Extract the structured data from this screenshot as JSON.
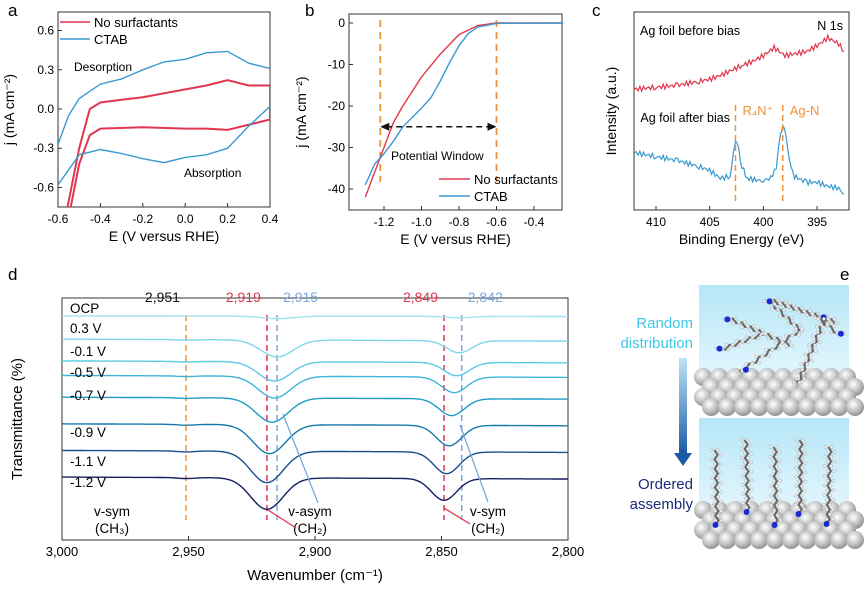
{
  "colors": {
    "red": "#e0364e",
    "blue": "#3a9ad0",
    "orange": "#f0923a",
    "random": "#3cc8e6",
    "ordered": "#1b2a7a"
  },
  "chart_data": [
    {
      "panel": "a",
      "type": "line",
      "xlabel": "E (V versus RHE)",
      "ylabel": "j (mA cm⁻²)",
      "xlim": [
        -0.6,
        0.4
      ],
      "ylim": [
        -0.75,
        0.74
      ],
      "xticks": [
        "-0.6",
        "-0.4",
        "-0.2",
        "0.0",
        "0.2",
        "0.4"
      ],
      "xtick_values": [
        -0.6,
        -0.4,
        -0.2,
        0.0,
        0.2,
        0.4
      ],
      "yticks": [
        "0.6",
        "0.3",
        "0.0",
        "-0.3",
        "-0.6"
      ],
      "ytick_values": [
        0.6,
        0.3,
        0.0,
        -0.3,
        -0.6
      ],
      "legend": "top-left",
      "annotations": [
        "Desorption",
        "Absorption"
      ],
      "series": [
        {
          "name": "No surfactants",
          "color": "#e0364e",
          "points": [
            [
              -0.555,
              -0.75
            ],
            [
              -0.5,
              -0.3
            ],
            [
              -0.45,
              0.0
            ],
            [
              -0.4,
              0.05
            ],
            [
              -0.3,
              0.07
            ],
            [
              -0.2,
              0.09
            ],
            [
              -0.1,
              0.12
            ],
            [
              0,
              0.15
            ],
            [
              0.1,
              0.18
            ],
            [
              0.2,
              0.22
            ],
            [
              0.3,
              0.18
            ],
            [
              0.4,
              0.18
            ],
            [
              0.4,
              -0.08
            ],
            [
              0.3,
              -0.12
            ],
            [
              0.2,
              -0.16
            ],
            [
              0.1,
              -0.15
            ],
            [
              0,
              -0.15
            ],
            [
              -0.2,
              -0.14
            ],
            [
              -0.4,
              -0.15
            ],
            [
              -0.45,
              -0.2
            ],
            [
              -0.5,
              -0.42
            ],
            [
              -0.54,
              -0.75
            ]
          ]
        },
        {
          "name": "CTAB",
          "color": "#3a9ad0",
          "points": [
            [
              -0.6,
              -0.27
            ],
            [
              -0.55,
              -0.05
            ],
            [
              -0.5,
              0.08
            ],
            [
              -0.4,
              0.19
            ],
            [
              -0.3,
              0.23
            ],
            [
              -0.2,
              0.3
            ],
            [
              -0.1,
              0.36
            ],
            [
              0,
              0.38
            ],
            [
              0.1,
              0.43
            ],
            [
              0.2,
              0.44
            ],
            [
              0.3,
              0.35
            ],
            [
              0.4,
              0.31
            ],
            [
              0.4,
              0.02
            ],
            [
              0.3,
              -0.13
            ],
            [
              0.2,
              -0.3
            ],
            [
              0.1,
              -0.35
            ],
            [
              0,
              -0.37
            ],
            [
              -0.1,
              -0.41
            ],
            [
              -0.2,
              -0.38
            ],
            [
              -0.3,
              -0.34
            ],
            [
              -0.4,
              -0.31
            ],
            [
              -0.5,
              -0.35
            ],
            [
              -0.6,
              -0.58
            ]
          ]
        }
      ]
    },
    {
      "panel": "b",
      "type": "line",
      "xlabel": "E (V versus RHE)",
      "ylabel": "j (mA cm⁻²)",
      "xlim": [
        -1.39,
        -0.245
      ],
      "ylim": [
        -45,
        2
      ],
      "xticks": [
        "-1.2",
        "-1.0",
        "-0.8",
        "-0.6",
        "-0.4"
      ],
      "xtick_values": [
        -1.2,
        -1.0,
        -0.8,
        -0.6,
        -0.4
      ],
      "yticks": [
        "0",
        "-10",
        "-20",
        "-30",
        "-40"
      ],
      "ytick_values": [
        0,
        -10,
        -20,
        -30,
        -40
      ],
      "legend": "bottom-right",
      "vlines": [
        -1.22,
        -0.6
      ],
      "annotation": {
        "text": "Potential Window",
        "from": -1.22,
        "to": -0.6,
        "y": -25
      },
      "series": [
        {
          "name": "No surfactants",
          "color": "#e0364e",
          "points": [
            [
              -1.3,
              -42
            ],
            [
              -1.25,
              -36
            ],
            [
              -1.2,
              -30
            ],
            [
              -1.15,
              -24
            ],
            [
              -1.1,
              -20
            ],
            [
              -1.0,
              -13
            ],
            [
              -0.9,
              -7.5
            ],
            [
              -0.8,
              -2.8
            ],
            [
              -0.7,
              -0.6
            ],
            [
              -0.6,
              0
            ],
            [
              -0.245,
              0
            ]
          ]
        },
        {
          "name": "CTAB",
          "color": "#3a9ad0",
          "points": [
            [
              -1.3,
              -39
            ],
            [
              -1.25,
              -34
            ],
            [
              -1.2,
              -31.5
            ],
            [
              -1.15,
              -28.5
            ],
            [
              -1.1,
              -25
            ],
            [
              -1.0,
              -20.5
            ],
            [
              -0.95,
              -18
            ],
            [
              -0.9,
              -14
            ],
            [
              -0.85,
              -9.5
            ],
            [
              -0.8,
              -5.5
            ],
            [
              -0.75,
              -2.5
            ],
            [
              -0.7,
              -1
            ],
            [
              -0.6,
              -0.1
            ],
            [
              -0.245,
              0
            ]
          ]
        }
      ]
    },
    {
      "panel": "c",
      "type": "line",
      "xlabel": "Binding Energy (eV)",
      "ylabel": "Intensity (a.u.)",
      "xlim": [
        412,
        392.3
      ],
      "ylim": [
        0,
        100
      ],
      "xticks": [
        "410",
        "405",
        "400",
        "395"
      ],
      "xtick_values": [
        410,
        405,
        400,
        395
      ],
      "title_corner": "N 1s",
      "vlines": [
        {
          "x": 402.6,
          "label": "R₄N⁺"
        },
        {
          "x": 398.2,
          "label": "Ag-N"
        }
      ],
      "series": [
        {
          "label": "Ag foil before bias",
          "color": "#e0364e",
          "points": [
            [
              412,
              61
            ],
            [
              410,
              62
            ],
            [
              408,
              63
            ],
            [
              406,
              65
            ],
            [
              405,
              66
            ],
            [
              404,
              68
            ],
            [
              402,
              73
            ],
            [
              401,
              75
            ],
            [
              400,
              78
            ],
            [
              399,
              82
            ],
            [
              398,
              78
            ],
            [
              397,
              79
            ],
            [
              396,
              80
            ],
            [
              395,
              83
            ],
            [
              394,
              87
            ],
            [
              393,
              84
            ],
            [
              392.5,
              80
            ]
          ]
        },
        {
          "label": "Ag foil after bias",
          "color": "#3a9ad0",
          "points": [
            [
              412,
              29
            ],
            [
              410,
              27
            ],
            [
              408,
              25
            ],
            [
              406,
              22
            ],
            [
              405,
              20
            ],
            [
              404,
              16
            ],
            [
              403.1,
              17
            ],
            [
              402.8,
              28
            ],
            [
              402.6,
              36
            ],
            [
              402.3,
              30
            ],
            [
              402,
              22
            ],
            [
              401.5,
              16
            ],
            [
              400.5,
              15
            ],
            [
              400,
              15
            ],
            [
              399.3,
              16
            ],
            [
              398.8,
              22
            ],
            [
              398.4,
              38
            ],
            [
              398.2,
              43
            ],
            [
              397.9,
              38
            ],
            [
              397.6,
              25
            ],
            [
              397.1,
              17
            ],
            [
              396,
              14
            ],
            [
              395,
              14
            ],
            [
              394,
              12
            ],
            [
              393,
              11
            ],
            [
              392.5,
              8
            ]
          ]
        }
      ]
    },
    {
      "panel": "d",
      "type": "line",
      "xlabel": "Wavenumber (cm⁻¹)",
      "ylabel": "Transmittance (%)",
      "xlim": [
        3000,
        2800
      ],
      "ylim": [
        0,
        100
      ],
      "xticks": [
        "3,000",
        "2,950",
        "2,900",
        "2,850",
        "2,800"
      ],
      "xtick_values": [
        3000,
        2950,
        2900,
        2850,
        2800
      ],
      "vlines": [
        {
          "x": 2951,
          "label": "2,951",
          "color": "#f0923a"
        },
        {
          "x": 2919,
          "label": "2,919",
          "color": "#e0364e"
        },
        {
          "x": 2915,
          "label": "2,915",
          "color": "#7aa8dc"
        },
        {
          "x": 2849,
          "label": "2,849",
          "color": "#e0364e"
        },
        {
          "x": 2842,
          "label": "2,842",
          "color": "#7aa8dc"
        }
      ],
      "annotations": [
        {
          "line1": "v-sym",
          "line2": "(CH₃)"
        },
        {
          "line1": "v-asym",
          "line2": "(CH₂)"
        },
        {
          "line1": "v-sym",
          "line2": "(CH₂)"
        }
      ],
      "series": [
        {
          "name": "OCP",
          "color": "#9fe3f0",
          "baseline": 92.6,
          "asym_depth": 1,
          "sym_depth": 0.6,
          "asym_center": 2915,
          "sym_center": 2843
        },
        {
          "name": "0.3 V",
          "color": "#7fd7ea",
          "baseline": 83,
          "asym_depth": 7,
          "sym_depth": 5,
          "asym_center": 2915,
          "sym_center": 2843
        },
        {
          "name": "-0.1 V",
          "color": "#5cc9e4",
          "baseline": 74,
          "asym_depth": 8,
          "sym_depth": 5.5,
          "asym_center": 2916,
          "sym_center": 2844
        },
        {
          "name": "-0.5 V",
          "color": "#3cb6da",
          "baseline": 68,
          "asym_depth": 9,
          "sym_depth": 6.5,
          "asym_center": 2916,
          "sym_center": 2845
        },
        {
          "name": "-0.7 V",
          "color": "#1f9cc8",
          "baseline": 59,
          "asym_depth": 10,
          "sym_depth": 7,
          "asym_center": 2917,
          "sym_center": 2846
        },
        {
          "name": "-0.9 V",
          "color": "#1678ad",
          "baseline": 48,
          "asym_depth": 12,
          "sym_depth": 8.5,
          "asym_center": 2918,
          "sym_center": 2847
        },
        {
          "name": "-1.1 V",
          "color": "#17508e",
          "baseline": 37,
          "asym_depth": 13,
          "sym_depth": 9,
          "asym_center": 2919,
          "sym_center": 2848
        },
        {
          "name": "-1.2 V",
          "color": "#141f62",
          "baseline": 26,
          "asym_depth": 13,
          "sym_depth": 9,
          "asym_center": 2919,
          "sym_center": 2849
        }
      ]
    }
  ],
  "panels": {
    "a": {
      "letter": "a",
      "desorption": "Desorption",
      "absorption": "Absorption"
    },
    "b": {
      "letter": "b",
      "window": "Potential Window"
    },
    "c": {
      "letter": "c"
    },
    "d": {
      "letter": "d"
    },
    "e": {
      "letter": "e",
      "random_1": "Random",
      "random_2": "distribution",
      "ordered_1": "Ordered",
      "ordered_2": "assembly"
    }
  }
}
